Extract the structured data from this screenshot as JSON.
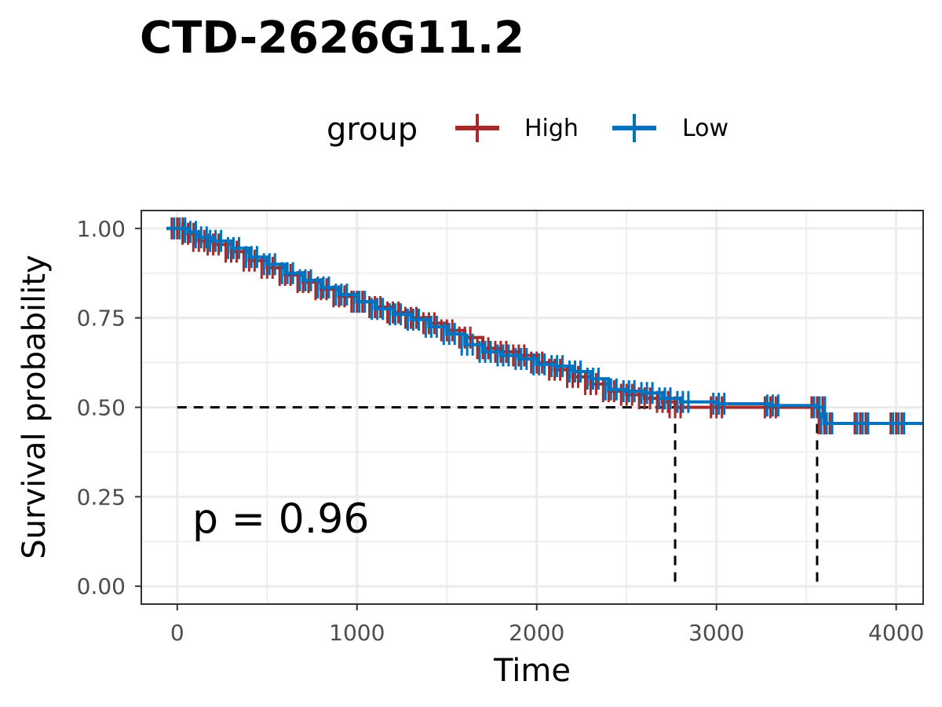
{
  "chart_data": {
    "type": "line",
    "subtype": "kaplan-meier",
    "title": "CTD-2626G11.2",
    "xlabel": "Time",
    "ylabel": "Survival probability",
    "xlim": [
      -200,
      4150
    ],
    "ylim": [
      -0.05,
      1.05
    ],
    "x_ticks": [
      0,
      1000,
      2000,
      3000,
      4000
    ],
    "x_tick_labels": [
      "0",
      "1000",
      "2000",
      "3000",
      "4000"
    ],
    "y_ticks": [
      0,
      0.25,
      0.5,
      0.75,
      1.0
    ],
    "y_tick_labels": [
      "0.00",
      "0.25",
      "0.50",
      "0.75",
      "1.00"
    ],
    "grid": true,
    "legend": {
      "title": "group",
      "position": "top"
    },
    "annotation": "p = 0.96",
    "median_line": {
      "y": 0.5,
      "x_values": [
        2770,
        3560
      ]
    },
    "series": [
      {
        "name": "High",
        "color": "#A52A2A",
        "points": [
          [
            -60,
            1.0
          ],
          [
            0,
            1.0
          ],
          [
            60,
            0.985
          ],
          [
            120,
            0.965
          ],
          [
            200,
            0.955
          ],
          [
            300,
            0.935
          ],
          [
            400,
            0.91
          ],
          [
            500,
            0.89
          ],
          [
            600,
            0.87
          ],
          [
            700,
            0.85
          ],
          [
            800,
            0.83
          ],
          [
            900,
            0.81
          ],
          [
            1000,
            0.795
          ],
          [
            1100,
            0.78
          ],
          [
            1200,
            0.765
          ],
          [
            1300,
            0.75
          ],
          [
            1400,
            0.735
          ],
          [
            1500,
            0.715
          ],
          [
            1600,
            0.695
          ],
          [
            1700,
            0.665
          ],
          [
            1800,
            0.655
          ],
          [
            1900,
            0.645
          ],
          [
            2000,
            0.625
          ],
          [
            2100,
            0.605
          ],
          [
            2200,
            0.585
          ],
          [
            2300,
            0.565
          ],
          [
            2400,
            0.545
          ],
          [
            2500,
            0.535
          ],
          [
            2600,
            0.525
          ],
          [
            2700,
            0.515
          ],
          [
            2770,
            0.5
          ],
          [
            3000,
            0.5
          ],
          [
            3300,
            0.5
          ],
          [
            3560,
            0.5
          ],
          [
            3600,
            0.455
          ],
          [
            3800,
            0.455
          ],
          [
            4000,
            0.455
          ],
          [
            4150,
            0.455
          ]
        ]
      },
      {
        "name": "Low",
        "color": "#0072BD",
        "points": [
          [
            -60,
            1.0
          ],
          [
            0,
            1.0
          ],
          [
            60,
            0.99
          ],
          [
            120,
            0.975
          ],
          [
            200,
            0.965
          ],
          [
            300,
            0.945
          ],
          [
            400,
            0.92
          ],
          [
            500,
            0.9
          ],
          [
            600,
            0.875
          ],
          [
            700,
            0.855
          ],
          [
            800,
            0.835
          ],
          [
            900,
            0.815
          ],
          [
            1000,
            0.795
          ],
          [
            1100,
            0.775
          ],
          [
            1200,
            0.76
          ],
          [
            1300,
            0.745
          ],
          [
            1400,
            0.725
          ],
          [
            1500,
            0.705
          ],
          [
            1600,
            0.675
          ],
          [
            1700,
            0.655
          ],
          [
            1800,
            0.645
          ],
          [
            1900,
            0.635
          ],
          [
            2000,
            0.62
          ],
          [
            2100,
            0.615
          ],
          [
            2200,
            0.6
          ],
          [
            2300,
            0.58
          ],
          [
            2400,
            0.55
          ],
          [
            2500,
            0.545
          ],
          [
            2600,
            0.54
          ],
          [
            2700,
            0.525
          ],
          [
            2800,
            0.515
          ],
          [
            3000,
            0.51
          ],
          [
            3300,
            0.505
          ],
          [
            3560,
            0.5
          ],
          [
            3600,
            0.455
          ],
          [
            3800,
            0.455
          ],
          [
            4000,
            0.455
          ],
          [
            4150,
            0.455
          ]
        ]
      }
    ]
  }
}
